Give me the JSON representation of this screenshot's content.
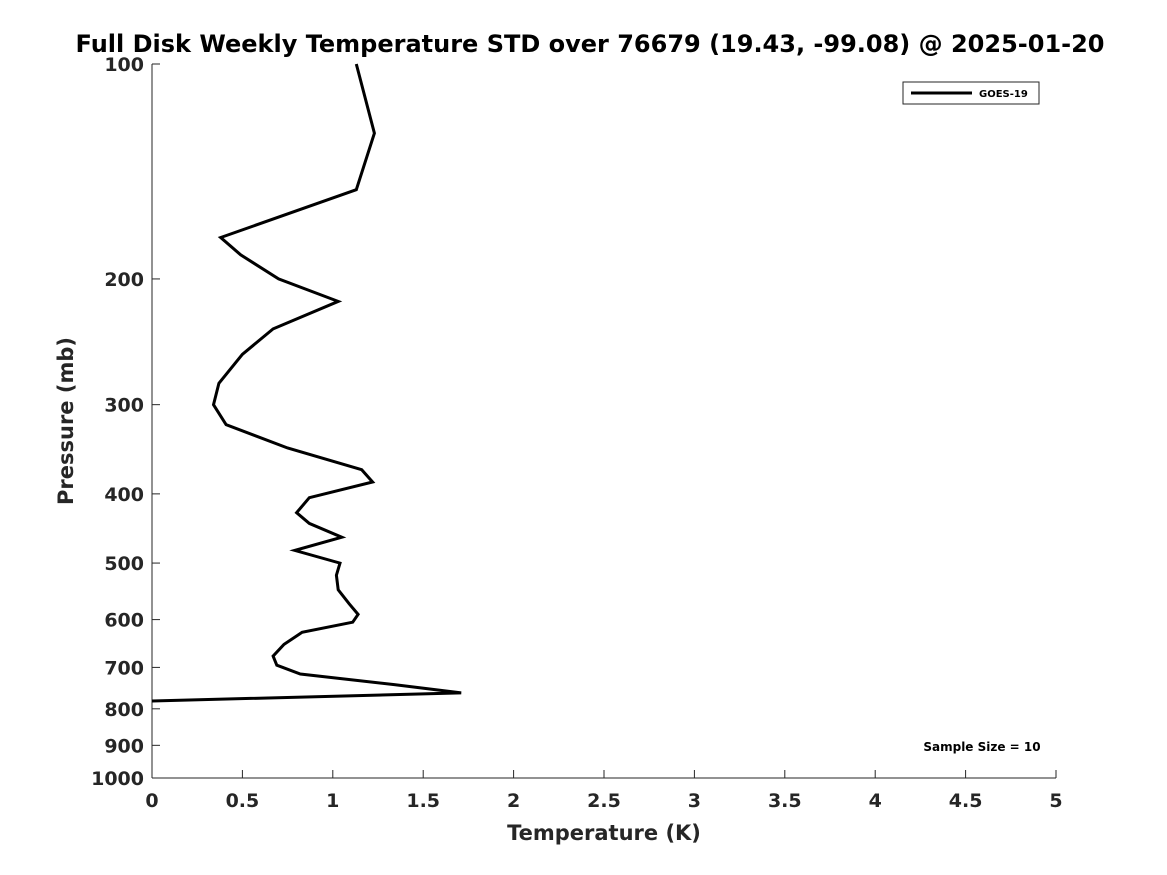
{
  "chart_data": {
    "type": "line",
    "title": "Full Disk Weekly Temperature STD over 76679 (19.43, -99.08) @ 2025-01-20",
    "xlabel": "Temperature (K)",
    "ylabel": "Pressure (mb)",
    "xlim": [
      0,
      5
    ],
    "ylim": [
      100,
      1000
    ],
    "y_scale": "log",
    "y_reversed": true,
    "x_ticks": [
      "0",
      "0.5",
      "1",
      "1.5",
      "2",
      "2.5",
      "3",
      "3.5",
      "4",
      "4.5",
      "5"
    ],
    "y_ticks": [
      "100",
      "200",
      "300",
      "400",
      "500",
      "600",
      "700",
      "800",
      "900",
      "1000"
    ],
    "grid": false,
    "legend_position": "top-right",
    "series": [
      {
        "name": "GOES-19",
        "color": "#000000",
        "points": [
          [
            1.13,
            100
          ],
          [
            1.23,
            125
          ],
          [
            1.13,
            150
          ],
          [
            0.38,
            175
          ],
          [
            0.49,
            185
          ],
          [
            0.7,
            200
          ],
          [
            1.03,
            215
          ],
          [
            0.67,
            235
          ],
          [
            0.5,
            255
          ],
          [
            0.37,
            280
          ],
          [
            0.34,
            300
          ],
          [
            0.41,
            320
          ],
          [
            0.75,
            345
          ],
          [
            1.16,
            370
          ],
          [
            1.22,
            385
          ],
          [
            0.87,
            405
          ],
          [
            0.8,
            425
          ],
          [
            0.87,
            440
          ],
          [
            1.05,
            460
          ],
          [
            0.79,
            480
          ],
          [
            1.04,
            500
          ],
          [
            1.02,
            520
          ],
          [
            1.03,
            545
          ],
          [
            1.09,
            570
          ],
          [
            1.14,
            590
          ],
          [
            1.11,
            605
          ],
          [
            0.83,
            625
          ],
          [
            0.73,
            650
          ],
          [
            0.67,
            675
          ],
          [
            0.69,
            695
          ],
          [
            0.82,
            715
          ],
          [
            1.34,
            740
          ],
          [
            1.71,
            760
          ],
          [
            0.0,
            780
          ]
        ]
      }
    ],
    "annotations": [
      "Sample Size = 10"
    ]
  }
}
